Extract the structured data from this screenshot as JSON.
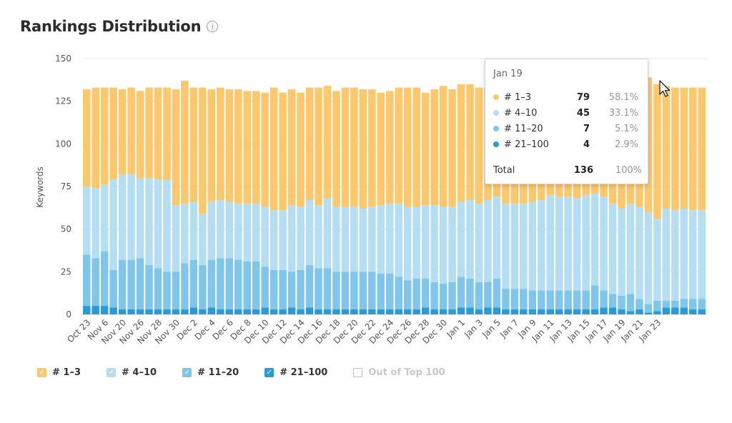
{
  "header": {
    "title": "Rankings Distribution",
    "info_icon": "info-icon"
  },
  "colors": {
    "top3": "#fdc76b",
    "top10": "#b5def3",
    "top20": "#80c5ea",
    "top100": "#2a9bd9",
    "grid": "#e8e8e8"
  },
  "legend": [
    {
      "label": "# 1–3",
      "color": "#fdc76b",
      "checked": true
    },
    {
      "label": "# 4–10",
      "color": "#b5def3",
      "checked": true
    },
    {
      "label": "# 11–20",
      "color": "#80c5ea",
      "checked": true
    },
    {
      "label": "# 21–100",
      "color": "#2a9bd9",
      "checked": true
    },
    {
      "label": "Out of Top 100",
      "color": "#bdbdbd",
      "checked": false
    }
  ],
  "tooltip": {
    "date": "Jan 19",
    "rows": [
      {
        "label": "# 1–3",
        "value": "79",
        "pct": "58.1%",
        "color": "#fdc76b"
      },
      {
        "label": "# 4–10",
        "value": "45",
        "pct": "33.1%",
        "color": "#b5def3"
      },
      {
        "label": "# 11–20",
        "value": "7",
        "pct": "5.1%",
        "color": "#80c5ea"
      },
      {
        "label": "# 21–100",
        "value": "4",
        "pct": "2.9%",
        "color": "#2a9bd9"
      }
    ],
    "total_label": "Total",
    "total_value": "136",
    "total_pct": "100%"
  },
  "chart_data": {
    "type": "bar",
    "stacked": true,
    "title": "Rankings Distribution",
    "ylabel": "Keywords",
    "xlabel": "",
    "ylim": [
      0,
      150
    ],
    "yticks": [
      0,
      25,
      50,
      75,
      100,
      125,
      150
    ],
    "grid": true,
    "legend_position": "bottom",
    "x_tick_labels": [
      "Oct 23",
      "Nov 6",
      "Nov 20",
      "Nov 26",
      "Nov 28",
      "Nov 30",
      "Dec 2",
      "Dec 4",
      "Dec 6",
      "Dec 8",
      "Dec 10",
      "Dec 12",
      "Dec 14",
      "Dec 16",
      "Dec 18",
      "Dec 20",
      "Dec 22",
      "Dec 24",
      "Dec 26",
      "Dec 28",
      "Dec 30",
      "Jan 1",
      "Jan 3",
      "Jan 5",
      "Jan 7",
      "Jan 9",
      "Jan 11",
      "Jan 13",
      "Jan 15",
      "Jan 17",
      "Jan 19",
      "Jan 21",
      "Jan 23"
    ],
    "x_tick_every": 2,
    "series": [
      {
        "name": "# 21–100",
        "color": "#2a9bd9",
        "values": [
          5,
          5,
          5,
          4,
          3,
          3,
          3,
          3,
          3,
          3,
          3,
          3,
          4,
          3,
          4,
          3,
          3,
          3,
          3,
          3,
          4,
          3,
          3,
          4,
          3,
          4,
          3,
          3,
          3,
          3,
          3,
          3,
          3,
          3,
          3,
          3,
          3,
          3,
          4,
          3,
          3,
          3,
          4,
          4,
          3,
          4,
          4,
          3,
          3,
          3,
          3,
          3,
          3,
          3,
          3,
          3,
          3,
          3,
          4,
          4,
          3,
          2,
          3,
          1,
          2,
          4,
          4,
          4,
          3,
          3
        ]
      },
      {
        "name": "# 11–20",
        "color": "#80c5ea",
        "values": [
          30,
          28,
          32,
          22,
          29,
          29,
          30,
          26,
          24,
          22,
          22,
          27,
          28,
          26,
          28,
          30,
          30,
          29,
          28,
          28,
          24,
          23,
          23,
          21,
          23,
          25,
          24,
          24,
          22,
          22,
          22,
          22,
          22,
          21,
          21,
          19,
          17,
          18,
          17,
          16,
          15,
          16,
          18,
          17,
          16,
          15,
          17,
          12,
          12,
          12,
          11,
          11,
          11,
          11,
          11,
          11,
          11,
          14,
          10,
          8,
          8,
          10,
          6,
          5,
          6,
          4,
          4,
          5,
          6,
          6
        ]
      },
      {
        "name": "# 4–10",
        "color": "#b5def3",
        "values": [
          40,
          41,
          39,
          53,
          50,
          50,
          47,
          51,
          52,
          54,
          39,
          35,
          34,
          30,
          34,
          34,
          33,
          33,
          34,
          34,
          35,
          35,
          35,
          39,
          37,
          38,
          37,
          41,
          38,
          38,
          38,
          37,
          38,
          40,
          41,
          43,
          43,
          42,
          43,
          45,
          45,
          44,
          44,
          46,
          46,
          48,
          48,
          50,
          50,
          50,
          52,
          53,
          56,
          55,
          55,
          54,
          56,
          54,
          55,
          53,
          51,
          53,
          54,
          54,
          48,
          54,
          53,
          53,
          52,
          52
        ]
      },
      {
        "name": "# 1–3",
        "color": "#fdc76b",
        "values": [
          57,
          59,
          57,
          54,
          50,
          51,
          51,
          53,
          54,
          54,
          68,
          72,
          67,
          74,
          66,
          66,
          66,
          67,
          66,
          66,
          67,
          72,
          69,
          68,
          67,
          66,
          69,
          66,
          68,
          70,
          70,
          70,
          69,
          66,
          66,
          68,
          70,
          70,
          66,
          68,
          71,
          69,
          69,
          68,
          68,
          66,
          66,
          69,
          68,
          65,
          67,
          64,
          63,
          66,
          66,
          68,
          69,
          65,
          66,
          72,
          72,
          68,
          73,
          79,
          79,
          72,
          72,
          71,
          72,
          72
        ]
      }
    ]
  }
}
